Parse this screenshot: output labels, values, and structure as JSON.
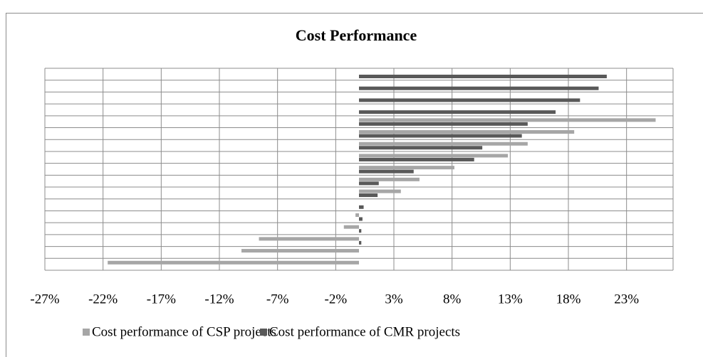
{
  "chart_data": {
    "type": "barh",
    "title": "Cost Performance",
    "categories": [
      null,
      null,
      null,
      null,
      null,
      null,
      null,
      null,
      null,
      null,
      null,
      null,
      null,
      null,
      null,
      null,
      null
    ],
    "series": [
      {
        "name": "Cost performance of CSP projects",
        "color": "#a6a6a6",
        "values": [
          0,
          0,
          0,
          0,
          25.5,
          18.5,
          14.5,
          12.8,
          8.2,
          5.2,
          3.6,
          0,
          -0.3,
          -1.3,
          -8.6,
          -10.1,
          -21.6
        ]
      },
      {
        "name": "Cost performance of CMR projects",
        "color": "#595959",
        "values": [
          21.3,
          20.6,
          19.0,
          16.9,
          14.5,
          14.0,
          10.6,
          9.9,
          4.7,
          1.7,
          1.6,
          0.4,
          0.3,
          0.2,
          0.2,
          0,
          0
        ]
      }
    ],
    "xlim": [
      -27,
      27
    ],
    "xticks": [
      {
        "value": -27,
        "label": "-27%"
      },
      {
        "value": -22,
        "label": "-22%"
      },
      {
        "value": -17,
        "label": "-17%"
      },
      {
        "value": -12,
        "label": "-12%"
      },
      {
        "value": -7,
        "label": "-7%"
      },
      {
        "value": -2,
        "label": "-2%"
      },
      {
        "value": 3,
        "label": "3%"
      },
      {
        "value": 8,
        "label": "8%"
      },
      {
        "value": 13,
        "label": "13%"
      },
      {
        "value": 18,
        "label": "18%"
      },
      {
        "value": 23,
        "label": "23%"
      }
    ],
    "grid": true,
    "legend": "bottom"
  }
}
